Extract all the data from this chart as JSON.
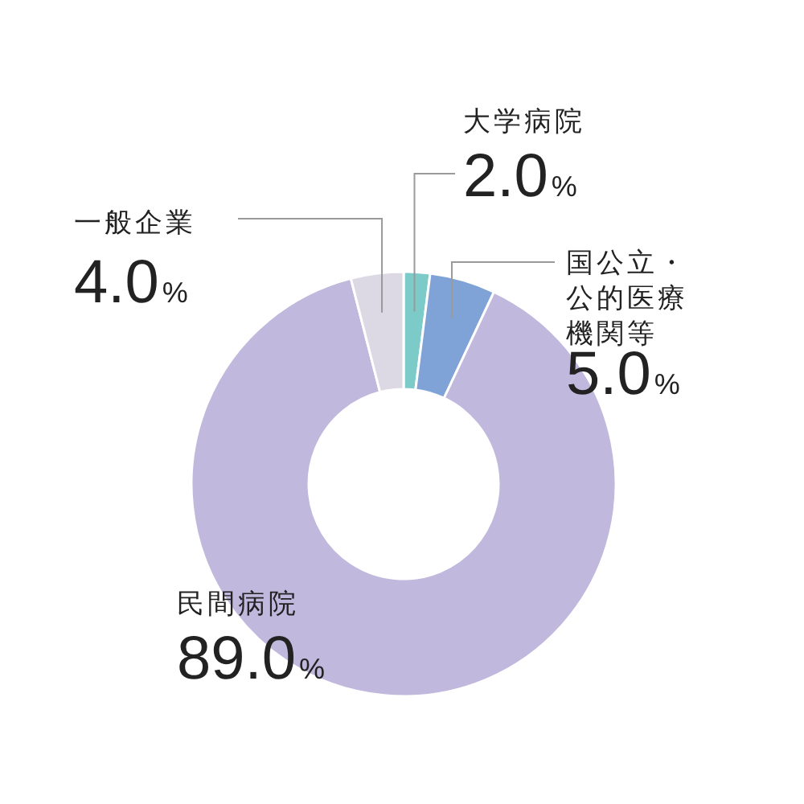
{
  "chart_data": {
    "type": "donut",
    "categories": [
      "大学病院",
      "国公立・公的医療機関等",
      "民間病院",
      "一般企業"
    ],
    "values": [
      2.0,
      5.0,
      89.0,
      4.0
    ],
    "colors": [
      "#7ccbc8",
      "#7fa3d6",
      "#c0b8dd",
      "#dcd8e4"
    ],
    "value_labels": [
      "2.0%",
      "5.0%",
      "89.0%",
      "4.0%"
    ]
  }
}
